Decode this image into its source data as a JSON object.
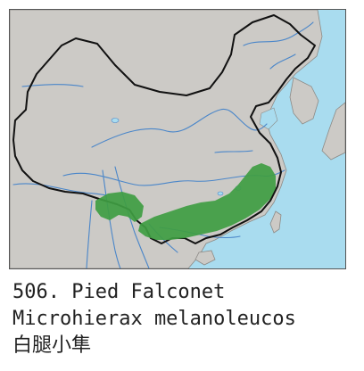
{
  "caption": {
    "common_name_line": "506. Pied Falconet",
    "scientific_name": "Microhierax melanoleucos",
    "chinese_name": "白腿小隼"
  },
  "map": {
    "land_color": "#cccac6",
    "sea_color": "#a9dcef",
    "river_color": "#4a86c9",
    "border_color": "#111111",
    "range_color": "#3f9d42"
  }
}
